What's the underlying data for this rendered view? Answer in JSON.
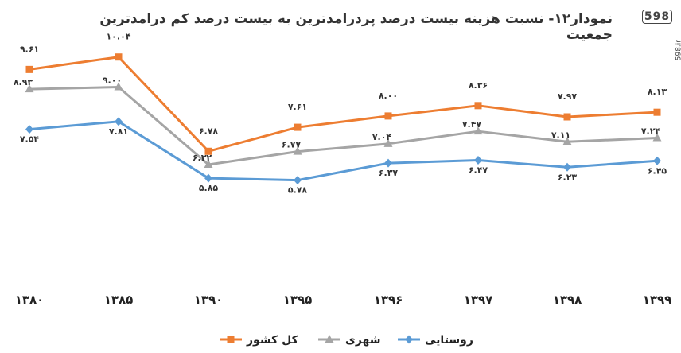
{
  "brand": {
    "logo_mark": "598",
    "logo_text": "598.ir"
  },
  "chart_data": {
    "type": "line",
    "title": "نمودار۱۲- نسبت هزینه بیست درصد پردرامدترین به بیست درصد کم  درامدترین جمعیت",
    "categories": [
      "۱۳۸۰",
      "۱۳۸۵",
      "۱۳۹۰",
      "۱۳۹۵",
      "۱۳۹۶",
      "۱۳۹۷",
      "۱۳۹۸",
      "۱۳۹۹"
    ],
    "ylim": [
      5.0,
      10.5
    ],
    "grid": false,
    "legend_position": "bottom",
    "series": [
      {
        "name": "کل کشور",
        "color": "#ED7D31",
        "marker": "square",
        "values": [
          9.61,
          10.04,
          6.78,
          7.61,
          8.0,
          8.36,
          7.97,
          8.13
        ],
        "labels": [
          "۹.۶۱",
          "۱۰.۰۴",
          "۶.۷۸",
          "۷.۶۱",
          "۸.۰۰",
          "۸.۳۶",
          "۷.۹۷",
          "۸.۱۳"
        ]
      },
      {
        "name": "شهری",
        "color": "#A5A5A5",
        "marker": "triangle",
        "values": [
          8.93,
          9.0,
          6.32,
          6.77,
          7.04,
          7.47,
          7.11,
          7.24
        ],
        "labels": [
          "۸.۹۳",
          "۹.۰۰",
          "۶.۳۲",
          "۶.۷۷",
          "۷.۰۴",
          "۷.۴۷",
          "۷.۱۱",
          "۷.۲۴"
        ]
      },
      {
        "name": "روستایی",
        "color": "#5B9BD5",
        "marker": "diamond",
        "values": [
          7.54,
          7.81,
          5.85,
          5.78,
          6.37,
          6.47,
          6.23,
          6.45
        ],
        "labels": [
          "۷.۵۴",
          "۷.۸۱",
          "۵.۸۵",
          "۵.۷۸",
          "۶.۳۷",
          "۶.۴۷",
          "۶.۲۳",
          "۶.۴۵"
        ]
      }
    ]
  }
}
